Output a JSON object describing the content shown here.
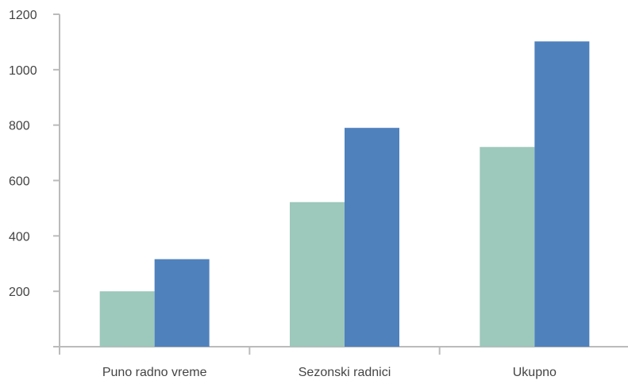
{
  "chart_data": {
    "type": "bar",
    "categories": [
      "Puno radno vreme",
      "Sezonski radnici",
      "Ukupno"
    ],
    "series": [
      {
        "color": "#9dc8bc",
        "values": [
          200,
          522,
          721
        ]
      },
      {
        "color": "#4f81bd",
        "values": [
          316,
          790,
          1102
        ]
      }
    ],
    "ylim": [
      0,
      1200
    ],
    "yticks": [
      200,
      400,
      600,
      800,
      1000,
      1200
    ],
    "ytick_labels": [
      "200",
      "400",
      "600",
      "800",
      "1000",
      "1200"
    ],
    "grid": false,
    "legend": "none",
    "axis_color": "#bbbbbb"
  }
}
